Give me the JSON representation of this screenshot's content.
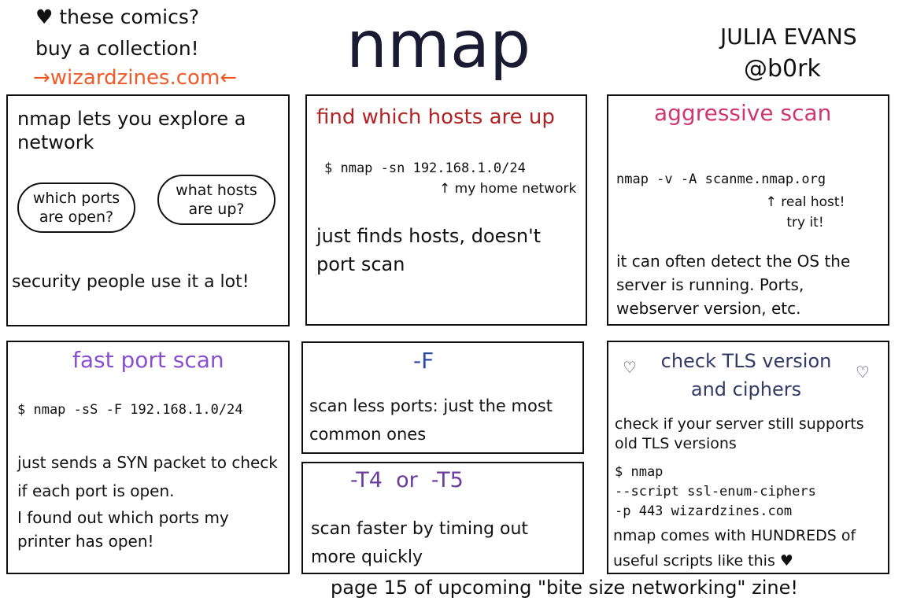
{
  "header": {
    "promo_line1": "♥ these comics?",
    "promo_line2": "buy a collection!",
    "promo_link": "→wizardzines.com←",
    "title": "nmap",
    "author": "JULIA EVANS",
    "handle": "@b0rk"
  },
  "colors": {
    "link": "#f05a28",
    "red": "#b22222",
    "pink": "#d0356e",
    "purple": "#8a4fd0",
    "blue": "#2a4aa0",
    "violet": "#6a3aa0",
    "navy": "#333a66"
  },
  "panels": {
    "intro": {
      "text": "nmap lets you explore a network",
      "cloud1": "which ports are open?",
      "cloud2": "what hosts are up?",
      "footer": "security people use it a lot!"
    },
    "hosts": {
      "title": "find which hosts are up",
      "command": "$ nmap -sn 192.168.1.0/24",
      "note": "↑ my home network",
      "text": "just finds hosts, doesn't port scan"
    },
    "aggressive": {
      "title": "aggressive scan",
      "command": "nmap -v -A scanme.nmap.org",
      "note": "↑ real host! try it!",
      "text": "it can often detect the OS the server is running. Ports, webserver version, etc."
    },
    "fast": {
      "title": "fast port scan",
      "command": "$ nmap -sS -F 192.168.1.0/24",
      "text1": "just sends a SYN packet to check if each port is open.",
      "text2": "I found out which ports my printer has open!"
    },
    "f": {
      "title": "-F",
      "text": "scan less ports: just the most common ones"
    },
    "t4": {
      "title": "-T4  or  -T5",
      "text": "scan faster by timing out more quickly"
    },
    "tls": {
      "title": "check TLS version and ciphers",
      "text": "check if your server still supports old TLS versions",
      "cmd1": "$ nmap",
      "cmd2": "--script ssl-enum-ciphers",
      "cmd3": "-p 443 wizardzines.com",
      "footer": "nmap comes with HUNDREDS of useful scripts like this ♥"
    }
  },
  "footer": "page 15 of upcoming \"bite size networking\" zine!"
}
